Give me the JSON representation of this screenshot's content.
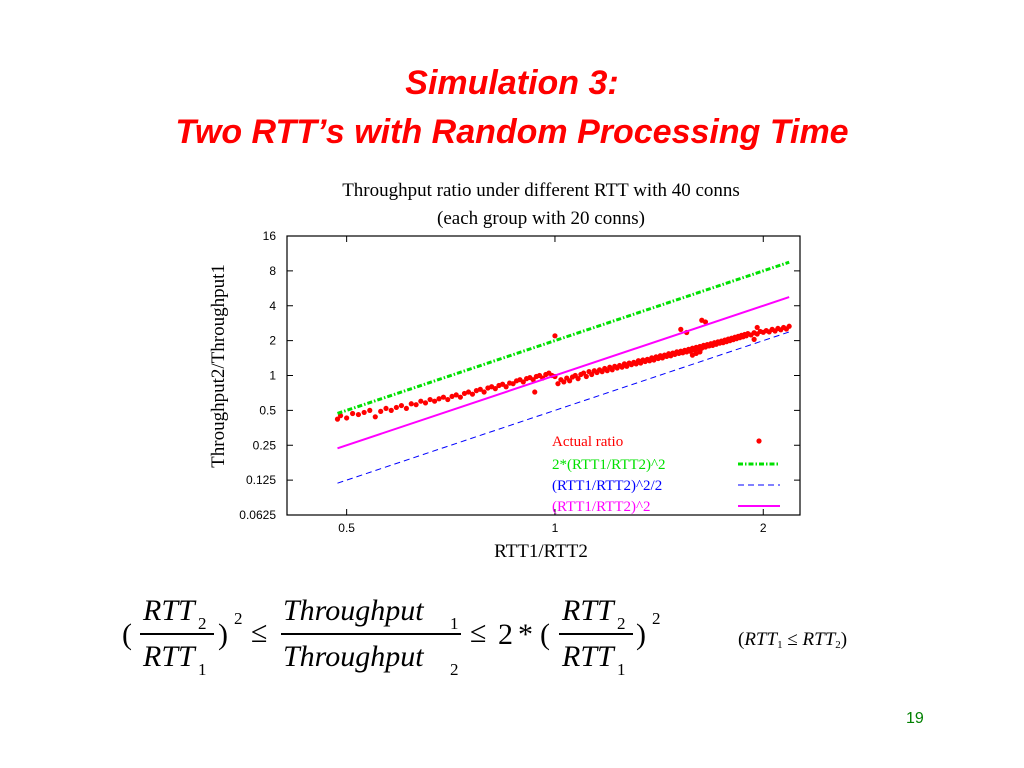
{
  "slide": {
    "title_line_1": "Simulation 3:",
    "title_line_2": "Two RTT’s with Random Processing Time",
    "page_number": "19",
    "title_color": "#ff0000",
    "page_number_color": "#008000"
  },
  "equation": {
    "open_paren": "(",
    "close_paren": ")",
    "rtt_num": "RTT",
    "rtt_num_sub": "2",
    "rtt_den": "RTT",
    "rtt_den_sub": "1",
    "exponent": "2",
    "leq": "≤",
    "throughput_num": "Throughput",
    "throughput_num_sub": "1",
    "throughput_den": "Throughput",
    "throughput_den_sub": "2",
    "factor": "2",
    "times": "*",
    "condition": {
      "open": "(",
      "rtt_a": "RTT",
      "rtt_a_sub": "1",
      "leq": "≤",
      "rtt_b": "RTT",
      "rtt_b_sub": "2",
      "close": ")"
    }
  },
  "chart_data": {
    "type": "scatter",
    "title": "Throughput ratio under different RTT with 40 conns",
    "subtitle": "(each group with 20 conns)",
    "xlabel": "RTT1/RTT2",
    "ylabel": "Throughput2/Throughput1",
    "x_scale": "log2",
    "y_scale": "log2",
    "xlim": [
      0.41,
      2.26
    ],
    "ylim": [
      0.0625,
      16
    ],
    "x_ticks": [
      0.5,
      1,
      2
    ],
    "x_tick_labels": [
      "0.5",
      "1",
      "2"
    ],
    "y_ticks": [
      0.0625,
      0.125,
      0.25,
      0.5,
      1,
      2,
      4,
      8,
      16
    ],
    "y_tick_labels": [
      "0.0625",
      "0.125",
      "0.25",
      "0.5",
      "1",
      "2",
      "4",
      "8",
      "16"
    ],
    "grid": false,
    "legend_position": "bottom-right",
    "series": [
      {
        "name": "Actual ratio",
        "kind": "points",
        "color": "#ff0000",
        "points": [
          [
            0.485,
            0.42
          ],
          [
            0.49,
            0.45
          ],
          [
            0.5,
            0.43
          ],
          [
            0.51,
            0.47
          ],
          [
            0.52,
            0.46
          ],
          [
            0.53,
            0.48
          ],
          [
            0.54,
            0.5
          ],
          [
            0.55,
            0.44
          ],
          [
            0.56,
            0.49
          ],
          [
            0.57,
            0.52
          ],
          [
            0.58,
            0.5
          ],
          [
            0.59,
            0.53
          ],
          [
            0.6,
            0.55
          ],
          [
            0.61,
            0.52
          ],
          [
            0.62,
            0.57
          ],
          [
            0.63,
            0.56
          ],
          [
            0.64,
            0.6
          ],
          [
            0.65,
            0.58
          ],
          [
            0.66,
            0.62
          ],
          [
            0.67,
            0.6
          ],
          [
            0.68,
            0.63
          ],
          [
            0.69,
            0.65
          ],
          [
            0.7,
            0.62
          ],
          [
            0.71,
            0.66
          ],
          [
            0.72,
            0.68
          ],
          [
            0.73,
            0.65
          ],
          [
            0.74,
            0.7
          ],
          [
            0.75,
            0.72
          ],
          [
            0.76,
            0.69
          ],
          [
            0.77,
            0.74
          ],
          [
            0.78,
            0.76
          ],
          [
            0.79,
            0.72
          ],
          [
            0.8,
            0.78
          ],
          [
            0.81,
            0.8
          ],
          [
            0.82,
            0.77
          ],
          [
            0.83,
            0.82
          ],
          [
            0.84,
            0.84
          ],
          [
            0.85,
            0.8
          ],
          [
            0.86,
            0.86
          ],
          [
            0.87,
            0.85
          ],
          [
            0.88,
            0.9
          ],
          [
            0.89,
            0.92
          ],
          [
            0.9,
            0.88
          ],
          [
            0.91,
            0.94
          ],
          [
            0.92,
            0.96
          ],
          [
            0.93,
            0.92
          ],
          [
            0.94,
            0.98
          ],
          [
            0.95,
            1.0
          ],
          [
            0.96,
            0.95
          ],
          [
            0.97,
            1.02
          ],
          [
            0.98,
            1.05
          ],
          [
            0.99,
            1.0
          ],
          [
            1.0,
            2.2
          ],
          [
            0.935,
            0.72
          ],
          [
            1.0,
            0.98
          ],
          [
            1.01,
            0.85
          ],
          [
            1.02,
            0.92
          ],
          [
            1.03,
            0.88
          ],
          [
            1.04,
            0.95
          ],
          [
            1.05,
            0.9
          ],
          [
            1.06,
            0.97
          ],
          [
            1.07,
            1.0
          ],
          [
            1.08,
            0.94
          ],
          [
            1.09,
            1.02
          ],
          [
            1.1,
            1.05
          ],
          [
            1.11,
            0.98
          ],
          [
            1.12,
            1.08
          ],
          [
            1.13,
            1.02
          ],
          [
            1.14,
            1.1
          ],
          [
            1.15,
            1.06
          ],
          [
            1.16,
            1.12
          ],
          [
            1.17,
            1.08
          ],
          [
            1.18,
            1.15
          ],
          [
            1.19,
            1.1
          ],
          [
            1.2,
            1.18
          ],
          [
            1.21,
            1.12
          ],
          [
            1.22,
            1.2
          ],
          [
            1.23,
            1.16
          ],
          [
            1.24,
            1.22
          ],
          [
            1.25,
            1.18
          ],
          [
            1.26,
            1.26
          ],
          [
            1.27,
            1.2
          ],
          [
            1.28,
            1.28
          ],
          [
            1.29,
            1.24
          ],
          [
            1.3,
            1.3
          ],
          [
            1.31,
            1.26
          ],
          [
            1.32,
            1.34
          ],
          [
            1.33,
            1.28
          ],
          [
            1.34,
            1.36
          ],
          [
            1.35,
            1.32
          ],
          [
            1.36,
            1.38
          ],
          [
            1.37,
            1.34
          ],
          [
            1.38,
            1.42
          ],
          [
            1.39,
            1.36
          ],
          [
            1.4,
            1.45
          ],
          [
            1.41,
            1.4
          ],
          [
            1.42,
            1.48
          ],
          [
            1.43,
            1.42
          ],
          [
            1.44,
            1.5
          ],
          [
            1.45,
            1.46
          ],
          [
            1.46,
            1.54
          ],
          [
            1.47,
            1.48
          ],
          [
            1.48,
            1.56
          ],
          [
            1.49,
            1.52
          ],
          [
            1.5,
            1.6
          ],
          [
            1.51,
            1.55
          ],
          [
            1.52,
            1.62
          ],
          [
            1.53,
            1.57
          ],
          [
            1.54,
            1.65
          ],
          [
            1.55,
            1.6
          ],
          [
            1.56,
            1.68
          ],
          [
            1.57,
            1.62
          ],
          [
            1.58,
            1.72
          ],
          [
            1.59,
            1.66
          ],
          [
            1.6,
            1.75
          ],
          [
            1.61,
            1.7
          ],
          [
            1.62,
            1.78
          ],
          [
            1.63,
            1.72
          ],
          [
            1.64,
            1.82
          ],
          [
            1.65,
            1.76
          ],
          [
            1.66,
            1.85
          ],
          [
            1.67,
            1.8
          ],
          [
            1.68,
            1.88
          ],
          [
            1.69,
            1.82
          ],
          [
            1.7,
            1.92
          ],
          [
            1.71,
            1.86
          ],
          [
            1.72,
            1.95
          ],
          [
            1.73,
            1.9
          ],
          [
            1.74,
            1.98
          ],
          [
            1.75,
            1.92
          ],
          [
            1.76,
            2.02
          ],
          [
            1.77,
            1.96
          ],
          [
            1.78,
            2.06
          ],
          [
            1.79,
            2.0
          ],
          [
            1.8,
            2.1
          ],
          [
            1.81,
            2.04
          ],
          [
            1.82,
            2.14
          ],
          [
            1.83,
            2.08
          ],
          [
            1.84,
            2.18
          ],
          [
            1.85,
            2.12
          ],
          [
            1.86,
            2.22
          ],
          [
            1.87,
            2.16
          ],
          [
            1.88,
            2.26
          ],
          [
            1.89,
            2.2
          ],
          [
            1.9,
            2.3
          ],
          [
            1.92,
            2.24
          ],
          [
            1.94,
            2.34
          ],
          [
            1.96,
            2.28
          ],
          [
            1.98,
            2.4
          ],
          [
            2.0,
            2.36
          ],
          [
            2.02,
            2.44
          ],
          [
            2.04,
            2.38
          ],
          [
            2.06,
            2.5
          ],
          [
            2.08,
            2.42
          ],
          [
            2.1,
            2.55
          ],
          [
            2.12,
            2.48
          ],
          [
            2.14,
            2.6
          ],
          [
            2.16,
            2.52
          ],
          [
            2.18,
            2.66
          ],
          [
            1.52,
            2.5
          ],
          [
            1.55,
            2.35
          ],
          [
            1.63,
            3.0
          ],
          [
            1.65,
            2.9
          ],
          [
            1.94,
            2.05
          ],
          [
            1.96,
            2.6
          ],
          [
            1.58,
            1.5
          ],
          [
            1.6,
            1.55
          ],
          [
            1.62,
            1.6
          ]
        ]
      },
      {
        "name": "2*(RTT1/RTT2)^2",
        "kind": "line",
        "color": "#00e000",
        "style": "dash-dot",
        "factor": 2
      },
      {
        "name": "(RTT1/RTT2)^2/2",
        "kind": "line",
        "color": "#0000ff",
        "style": "dashed",
        "factor": 0.5
      },
      {
        "name": "(RTT1/RTT2)^2",
        "kind": "line",
        "color": "#ff00ff",
        "style": "solid",
        "factor": 1
      }
    ]
  }
}
